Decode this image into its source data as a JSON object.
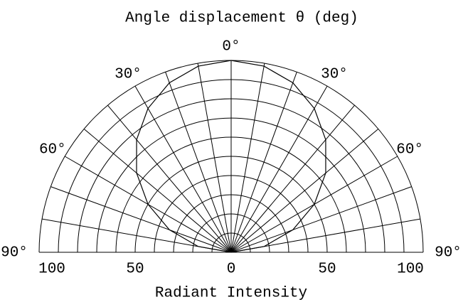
{
  "chart_data": {
    "type": "polar",
    "title": "Angle displacement  θ (deg)",
    "xlabel": "Radiant Intensity",
    "angles": [
      -90,
      -80,
      -70,
      -60,
      -50,
      -40,
      -30,
      -20,
      -10,
      0,
      10,
      20,
      30,
      40,
      50,
      60,
      70,
      80,
      90
    ],
    "values": [
      0,
      17.4,
      34.2,
      50,
      64.3,
      76.6,
      86.6,
      94,
      98.5,
      100,
      98.5,
      94,
      86.6,
      76.6,
      64.3,
      50,
      34.2,
      17.4,
      0
    ],
    "color": "#000000",
    "rlim": [
      0,
      100
    ],
    "rgrid": [
      10,
      20,
      30,
      40,
      50,
      60,
      70,
      80,
      90,
      100
    ],
    "anglegrid": [
      -90,
      -80,
      -70,
      -60,
      -50,
      -40,
      -30,
      -20,
      -10,
      0,
      10,
      20,
      30,
      40,
      50,
      60,
      70,
      80,
      90
    ],
    "angleticks": [
      {
        "value": -90,
        "label": "90°"
      },
      {
        "value": -60,
        "label": "60°"
      },
      {
        "value": -30,
        "label": "30°"
      },
      {
        "value": 0,
        "label": "0°"
      },
      {
        "value": 30,
        "label": "30°"
      },
      {
        "value": 60,
        "label": "60°"
      },
      {
        "value": 90,
        "label": "90°"
      }
    ],
    "rticks": [
      {
        "value": -100,
        "label": "100"
      },
      {
        "value": -50,
        "label": "50"
      },
      0,
      {
        "value": 50,
        "label": "50"
      },
      {
        "value": 100,
        "label": "100"
      }
    ]
  }
}
